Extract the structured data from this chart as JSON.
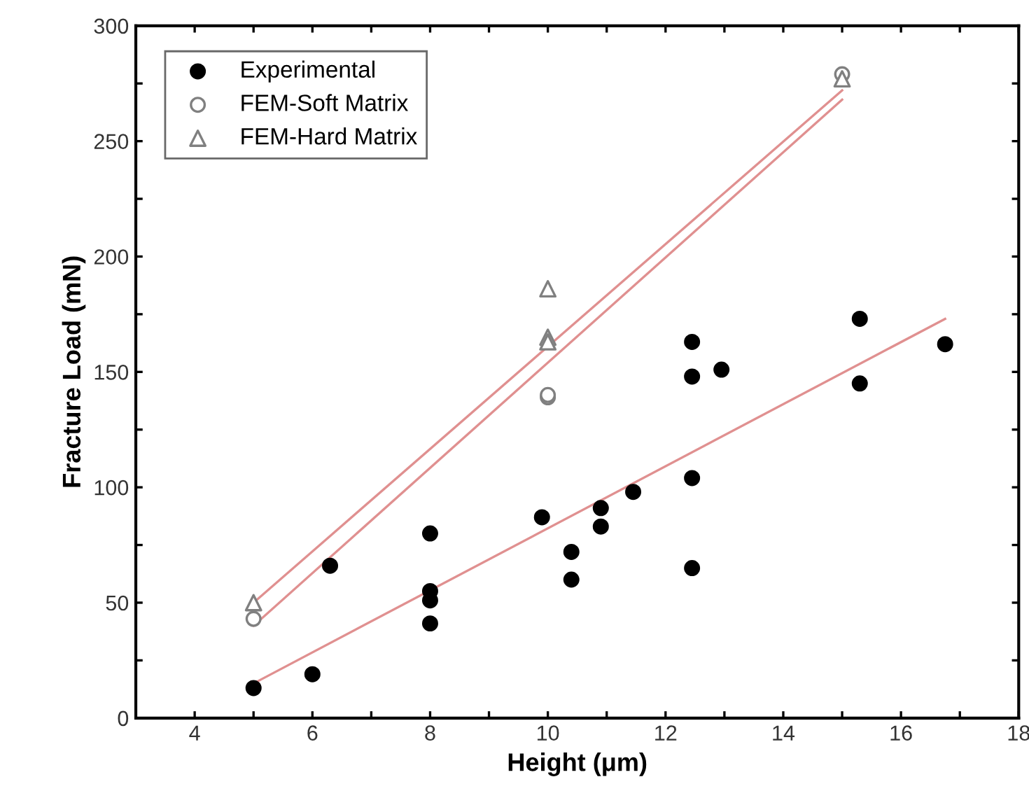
{
  "chart_data": {
    "type": "scatter",
    "xlabel": "Height (μm)",
    "ylabel": "Fracture Load (mN)",
    "xlim": [
      3,
      18
    ],
    "ylim": [
      0,
      300
    ],
    "xticks": [
      4,
      {
        "value": 5,
        "label": null
      },
      6,
      {
        "value": 7,
        "label": null
      },
      8,
      {
        "value": 9,
        "label": null
      },
      10,
      {
        "value": 11,
        "label": null
      },
      12,
      {
        "value": 13,
        "label": null
      },
      14,
      {
        "value": 15,
        "label": null
      },
      16,
      {
        "value": 17,
        "label": null
      },
      18
    ],
    "yticks": [
      0,
      {
        "value": 25,
        "label": null
      },
      50,
      {
        "value": 75,
        "label": null
      },
      100,
      {
        "value": 125,
        "label": null
      },
      150,
      {
        "value": 175,
        "label": null
      },
      200,
      {
        "value": 225,
        "label": null
      },
      250,
      {
        "value": 275,
        "label": null
      },
      300
    ],
    "grid": false,
    "legend": "top left",
    "series": [
      {
        "name": "Experimental",
        "marker": "circle",
        "color": "#000000",
        "x": [
          5,
          6,
          6.3,
          8,
          8,
          8,
          8,
          9.9,
          10.4,
          10.4,
          10.9,
          10.9,
          11.45,
          12.45,
          12.45,
          12.45,
          12.45,
          12.95,
          15.3,
          15.3,
          16.75
        ],
        "values": [
          13,
          19,
          66,
          80,
          55,
          51,
          41,
          87,
          72,
          60,
          91,
          83,
          98,
          163,
          148,
          104,
          65,
          151,
          173,
          145,
          162
        ]
      },
      {
        "name": "FEM-Soft Matrix",
        "marker": "circle",
        "color": "#808080",
        "x": [
          5,
          10,
          10,
          15
        ],
        "values": [
          43,
          139,
          140,
          279
        ]
      },
      {
        "name": "FEM-Hard Matrix",
        "marker": "triangle",
        "color": "#808080",
        "x": [
          5,
          10,
          10,
          10,
          15
        ],
        "values": [
          50,
          186,
          165,
          163,
          277
        ]
      },
      {
        "type": "line",
        "color": "#e09090",
        "x": [
          5,
          16.75
        ],
        "values": [
          15,
          173
        ]
      },
      {
        "type": "line",
        "color": "#e09090",
        "x": [
          5,
          15
        ],
        "values": [
          40,
          268
        ]
      },
      {
        "type": "line",
        "color": "#e09090",
        "x": [
          5,
          15
        ],
        "values": [
          50,
          272
        ]
      }
    ]
  }
}
